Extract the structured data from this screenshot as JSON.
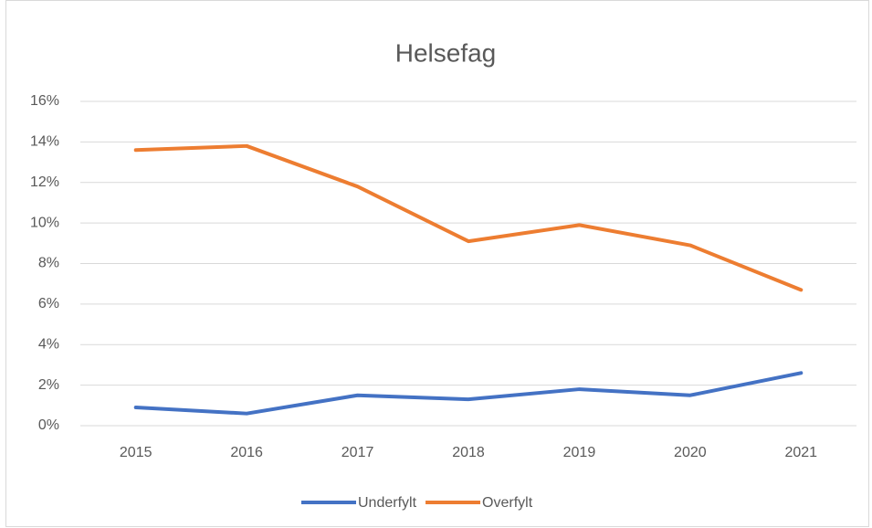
{
  "chart_data": {
    "type": "line",
    "title": "Helsefag",
    "categories": [
      "2015",
      "2016",
      "2017",
      "2018",
      "2019",
      "2020",
      "2021"
    ],
    "series": [
      {
        "name": "Underfylt",
        "color": "#4472c4",
        "values": [
          0.9,
          0.6,
          1.5,
          1.3,
          1.8,
          1.5,
          2.6
        ]
      },
      {
        "name": "Overfylt",
        "color": "#ed7d31",
        "values": [
          13.6,
          13.8,
          11.8,
          9.1,
          9.9,
          8.9,
          6.7
        ]
      }
    ],
    "ylim": [
      0,
      16
    ],
    "yticks": [
      {
        "value": 0,
        "label": "0%"
      },
      {
        "value": 2,
        "label": "2%"
      },
      {
        "value": 4,
        "label": "4%"
      },
      {
        "value": 6,
        "label": "6%"
      },
      {
        "value": 8,
        "label": "8%"
      },
      {
        "value": 10,
        "label": "10%"
      },
      {
        "value": 12,
        "label": "12%"
      },
      {
        "value": 14,
        "label": "14%"
      },
      {
        "value": 16,
        "label": "16%"
      }
    ],
    "grid": true,
    "legend": "bottom"
  }
}
